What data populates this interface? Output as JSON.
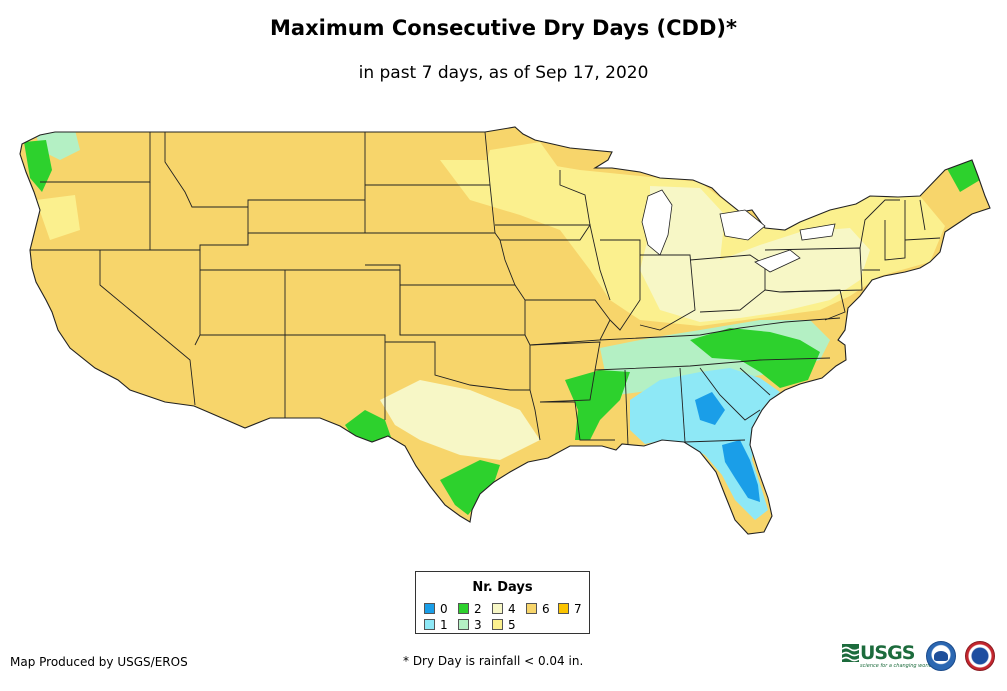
{
  "title": "Maximum Consecutive Dry Days (CDD)*",
  "subtitle": "in past 7 days, as of Sep 17, 2020",
  "legend": {
    "title": "Nr. Days",
    "items": [
      {
        "label": "0",
        "color": "#1a9ee8"
      },
      {
        "label": "1",
        "color": "#8ee8f6"
      },
      {
        "label": "2",
        "color": "#2dd12d"
      },
      {
        "label": "3",
        "color": "#b4f0c4"
      },
      {
        "label": "4",
        "color": "#f7f7c6"
      },
      {
        "label": "5",
        "color": "#fbf08e"
      },
      {
        "label": "6",
        "color": "#f7d56b"
      },
      {
        "label": "7",
        "color": "#fbc400"
      }
    ]
  },
  "footer": {
    "credit": "Map Produced by USGS/EROS",
    "note": "* Dry Day is rainfall < 0.04 in."
  },
  "logos": {
    "usgs": "USGS",
    "usgs_tagline": "science for a changing world",
    "noaa": "noaa-logo",
    "nws": "nws-logo"
  },
  "map": {
    "region": "Contiguous United States",
    "state_border_color": "#222222",
    "icon": "us-states-map"
  }
}
